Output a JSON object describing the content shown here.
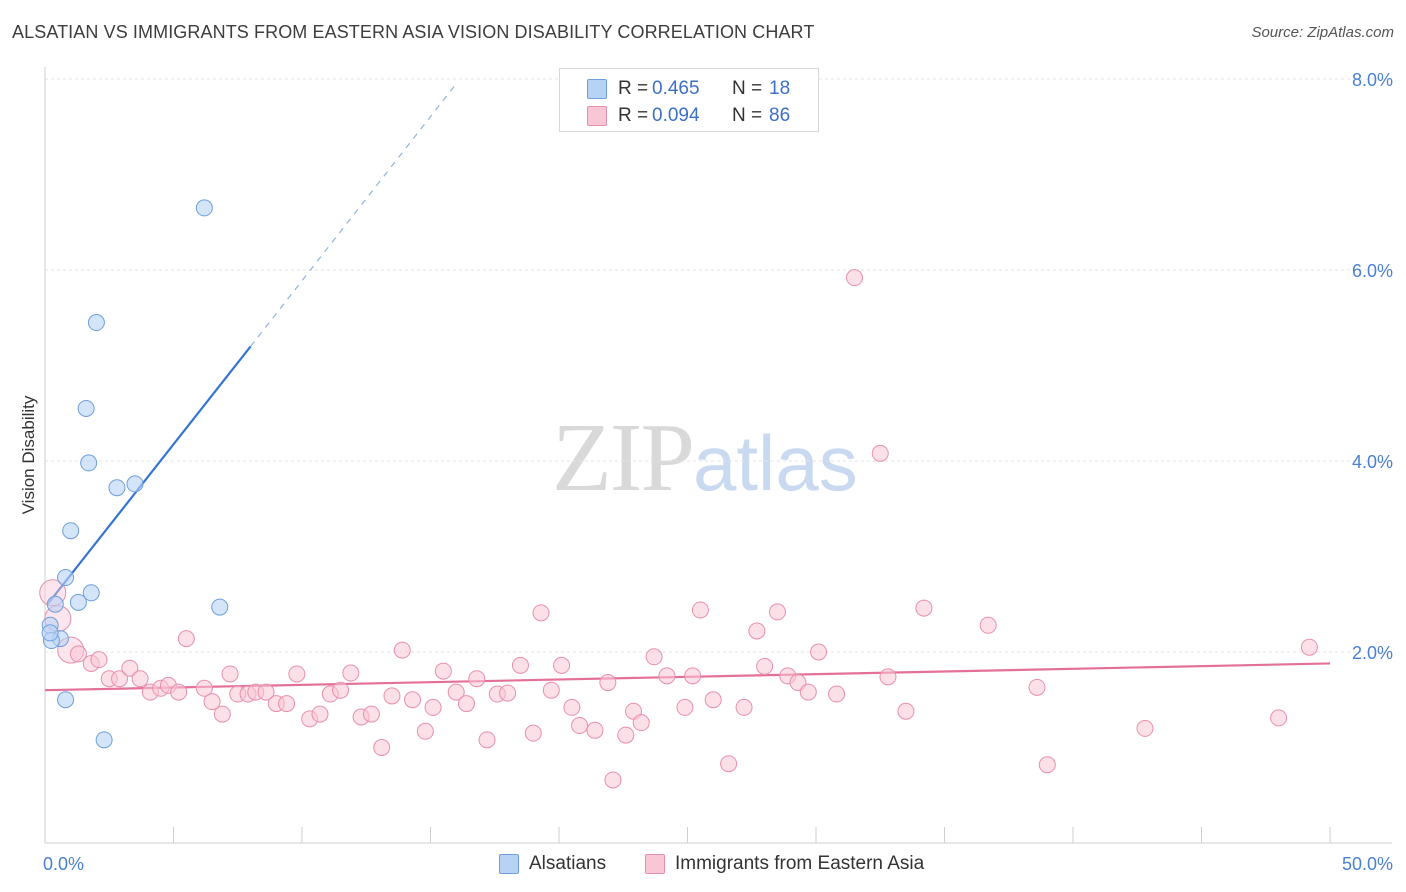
{
  "header": {
    "title": "ALSATIAN VS IMMIGRANTS FROM EASTERN ASIA VISION DISABILITY CORRELATION CHART",
    "source": "Source: ZipAtlas.com"
  },
  "watermark": {
    "zip": "ZIP",
    "atlas": "atlas"
  },
  "legend": {
    "rows": [
      {
        "r_label": "R =",
        "r_value": "0.465",
        "n_label": "N =",
        "n_value": "18"
      },
      {
        "r_label": "R =",
        "r_value": "0.094",
        "n_label": "N =",
        "n_value": "86"
      }
    ]
  },
  "bottom_legend": {
    "items": [
      "Alsatians",
      "Immigrants from Eastern Asia"
    ]
  },
  "colors": {
    "blue_fill": "#b8d2f5",
    "blue_stroke": "#6f9fdc",
    "blue_line": "#3574d4",
    "pink_fill": "#f9c6d6",
    "pink_stroke": "#e98fae",
    "pink_line": "#e4709a"
  },
  "chart_data": {
    "type": "scatter",
    "title": "ALSATIAN VS IMMIGRANTS FROM EASTERN ASIA VISION DISABILITY CORRELATION CHART",
    "xlabel": "",
    "ylabel": "Vision Disability",
    "xlim": [
      0,
      50
    ],
    "ylim": [
      0,
      8.0
    ],
    "x_tick_labels": [
      "0.0%",
      "50.0%"
    ],
    "y_ticks": [
      2.0,
      4.0,
      6.0,
      8.0
    ],
    "y_tick_labels": [
      "2.0%",
      "4.0%",
      "6.0%",
      "8.0%"
    ],
    "series": [
      {
        "name": "Alsatians",
        "R": 0.465,
        "N": 18,
        "trend": {
          "x": [
            0.1,
            8.0
          ],
          "y": [
            2.5,
            5.2
          ],
          "dashed_to": [
            16.0,
            7.95
          ]
        },
        "points": [
          [
            6.2,
            6.65
          ],
          [
            2.0,
            5.45
          ],
          [
            1.6,
            4.55
          ],
          [
            1.7,
            3.98
          ],
          [
            2.8,
            3.72
          ],
          [
            3.5,
            3.76
          ],
          [
            1.0,
            3.27
          ],
          [
            0.8,
            2.78
          ],
          [
            1.8,
            2.62
          ],
          [
            1.3,
            2.52
          ],
          [
            0.4,
            2.5
          ],
          [
            6.8,
            2.47
          ],
          [
            0.2,
            2.28
          ],
          [
            0.6,
            2.14
          ],
          [
            0.25,
            2.12
          ],
          [
            0.8,
            1.5
          ],
          [
            2.3,
            1.08
          ],
          [
            0.2,
            2.2
          ]
        ]
      },
      {
        "name": "Immigrants from Eastern Asia",
        "R": 0.094,
        "N": 86,
        "trend": {
          "x": [
            0,
            50
          ],
          "y": [
            1.6,
            1.88
          ]
        },
        "points": [
          [
            0.3,
            2.62
          ],
          [
            0.5,
            2.35
          ],
          [
            1.0,
            2.02
          ],
          [
            1.3,
            1.98
          ],
          [
            1.8,
            1.88
          ],
          [
            2.1,
            1.92
          ],
          [
            2.5,
            1.72
          ],
          [
            2.9,
            1.72
          ],
          [
            3.3,
            1.83
          ],
          [
            3.7,
            1.72
          ],
          [
            4.1,
            1.58
          ],
          [
            4.5,
            1.62
          ],
          [
            4.8,
            1.65
          ],
          [
            5.2,
            1.58
          ],
          [
            5.5,
            2.14
          ],
          [
            6.2,
            1.62
          ],
          [
            6.5,
            1.48
          ],
          [
            6.9,
            1.35
          ],
          [
            7.2,
            1.77
          ],
          [
            7.5,
            1.56
          ],
          [
            7.9,
            1.56
          ],
          [
            8.2,
            1.58
          ],
          [
            8.6,
            1.58
          ],
          [
            9.0,
            1.46
          ],
          [
            9.4,
            1.46
          ],
          [
            9.8,
            1.77
          ],
          [
            10.3,
            1.3
          ],
          [
            10.7,
            1.35
          ],
          [
            11.1,
            1.56
          ],
          [
            11.5,
            1.6
          ],
          [
            11.9,
            1.78
          ],
          [
            12.3,
            1.32
          ],
          [
            12.7,
            1.35
          ],
          [
            13.1,
            1.0
          ],
          [
            13.5,
            1.54
          ],
          [
            13.9,
            2.02
          ],
          [
            14.3,
            1.5
          ],
          [
            14.8,
            1.17
          ],
          [
            15.1,
            1.42
          ],
          [
            15.5,
            1.8
          ],
          [
            16.0,
            1.58
          ],
          [
            16.4,
            1.46
          ],
          [
            16.8,
            1.72
          ],
          [
            17.2,
            1.08
          ],
          [
            17.6,
            1.56
          ],
          [
            18.0,
            1.57
          ],
          [
            18.5,
            1.86
          ],
          [
            19.0,
            1.15
          ],
          [
            19.3,
            2.41
          ],
          [
            19.7,
            1.6
          ],
          [
            20.1,
            1.86
          ],
          [
            20.5,
            1.42
          ],
          [
            20.8,
            1.23
          ],
          [
            21.4,
            1.18
          ],
          [
            21.9,
            1.68
          ],
          [
            22.1,
            0.66
          ],
          [
            22.6,
            1.13
          ],
          [
            22.9,
            1.38
          ],
          [
            23.2,
            1.26
          ],
          [
            23.7,
            1.95
          ],
          [
            24.2,
            1.75
          ],
          [
            24.9,
            1.42
          ],
          [
            25.2,
            1.75
          ],
          [
            25.5,
            2.44
          ],
          [
            26.0,
            1.5
          ],
          [
            26.6,
            0.83
          ],
          [
            27.2,
            1.42
          ],
          [
            27.7,
            2.22
          ],
          [
            28.0,
            1.85
          ],
          [
            28.5,
            2.42
          ],
          [
            28.9,
            1.75
          ],
          [
            29.3,
            1.68
          ],
          [
            29.7,
            1.58
          ],
          [
            30.1,
            2.0
          ],
          [
            30.8,
            1.56
          ],
          [
            31.5,
            5.92
          ],
          [
            32.5,
            4.08
          ],
          [
            32.8,
            1.74
          ],
          [
            33.5,
            1.38
          ],
          [
            34.2,
            2.46
          ],
          [
            36.7,
            2.28
          ],
          [
            38.6,
            1.63
          ],
          [
            39.0,
            0.82
          ],
          [
            42.8,
            1.2
          ],
          [
            48.0,
            1.31
          ],
          [
            49.2,
            2.05
          ]
        ]
      }
    ]
  }
}
